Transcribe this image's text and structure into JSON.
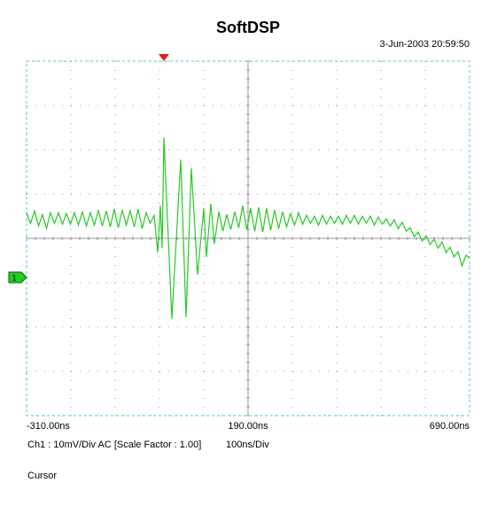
{
  "chart_data": {
    "type": "line",
    "title": "SoftDSP",
    "timestamp": "3-Jun-2003 20:59:50",
    "channel_info": "Ch1 : 10mV/Div  AC  [Scale Factor : 1.00]",
    "timebase": "100ns/Div",
    "cursor_label": "Cursor",
    "color": "#22cc22",
    "grid": true,
    "xlim": [
      -310,
      690
    ],
    "ylim": [
      -40,
      40
    ],
    "xticks": [
      {
        "value": -310,
        "label": "-310.00ns"
      },
      {
        "value": 190,
        "label": "190.00ns"
      },
      {
        "value": 690,
        "label": "690.00ns"
      }
    ],
    "xgrid": [
      -310,
      -210,
      -110,
      -10,
      90,
      190,
      290,
      390,
      490,
      590,
      690
    ],
    "yticks": [
      -40,
      -30,
      -20,
      -10,
      0,
      10,
      20,
      30,
      40
    ],
    "trigger": 0,
    "channel_marker": {
      "label": "1",
      "value": -8.8
    },
    "x": [
      -310,
      -301,
      -292,
      -283,
      -274,
      -265,
      -256,
      -247,
      -238,
      -229,
      -220,
      -211,
      -202,
      -193,
      -184,
      -175,
      -166,
      -157,
      -148,
      -139,
      -130,
      -121,
      -112,
      -103,
      -94,
      -85,
      -76,
      -67,
      -58,
      -49,
      -40,
      -31,
      -22,
      -14,
      -8,
      -4,
      0,
      18,
      38,
      50,
      62,
      76,
      90,
      96,
      106,
      114,
      124,
      133,
      142,
      151,
      160,
      169,
      178,
      187,
      196,
      205,
      214,
      223,
      232,
      241,
      250,
      259,
      268,
      277,
      286,
      295,
      304,
      313,
      322,
      331,
      340,
      349,
      358,
      367,
      376,
      385,
      394,
      403,
      412,
      421,
      430,
      439,
      448,
      457,
      466,
      475,
      484,
      493,
      502,
      511,
      520,
      529,
      538,
      547,
      556,
      565,
      574,
      583,
      592,
      601,
      610,
      619,
      628,
      637,
      646,
      655,
      664,
      673,
      682,
      690
    ],
    "values": [
      5.8,
      3.4,
      6.2,
      2.8,
      5.4,
      2.2,
      5.8,
      3.4,
      5.8,
      3.2,
      5.6,
      3.2,
      5.8,
      3.0,
      6.0,
      2.8,
      5.8,
      3.0,
      6.4,
      2.8,
      6.2,
      2.6,
      6.6,
      2.4,
      6.4,
      3.0,
      6.2,
      2.6,
      6.6,
      2.2,
      5.8,
      3.4,
      5.2,
      -3.2,
      7.4,
      -2.2,
      22.8,
      -18.2,
      17.8,
      -17.8,
      15.8,
      -8.2,
      6.8,
      -4.2,
      7.8,
      -1.2,
      6.0,
      1.6,
      5.4,
      2.0,
      6.0,
      2.4,
      7.4,
      2.0,
      6.8,
      1.6,
      7.0,
      1.4,
      6.8,
      1.8,
      6.4,
      2.2,
      6.0,
      2.6,
      5.6,
      3.0,
      5.8,
      3.2,
      5.2,
      3.4,
      5.0,
      3.0,
      5.2,
      3.2,
      5.0,
      3.4,
      5.0,
      3.2,
      5.2,
      3.4,
      5.2,
      3.2,
      5.0,
      3.4,
      5.0,
      3.0,
      4.8,
      3.2,
      4.4,
      2.8,
      4.2,
      2.2,
      3.6,
      1.6,
      2.4,
      0.4,
      1.4,
      -0.6,
      0.6,
      -1.4,
      -0.2,
      -2.2,
      -0.8,
      -3.2,
      -2.0,
      -4.2,
      -3.0,
      -6.2,
      -3.8,
      -4.4
    ]
  }
}
